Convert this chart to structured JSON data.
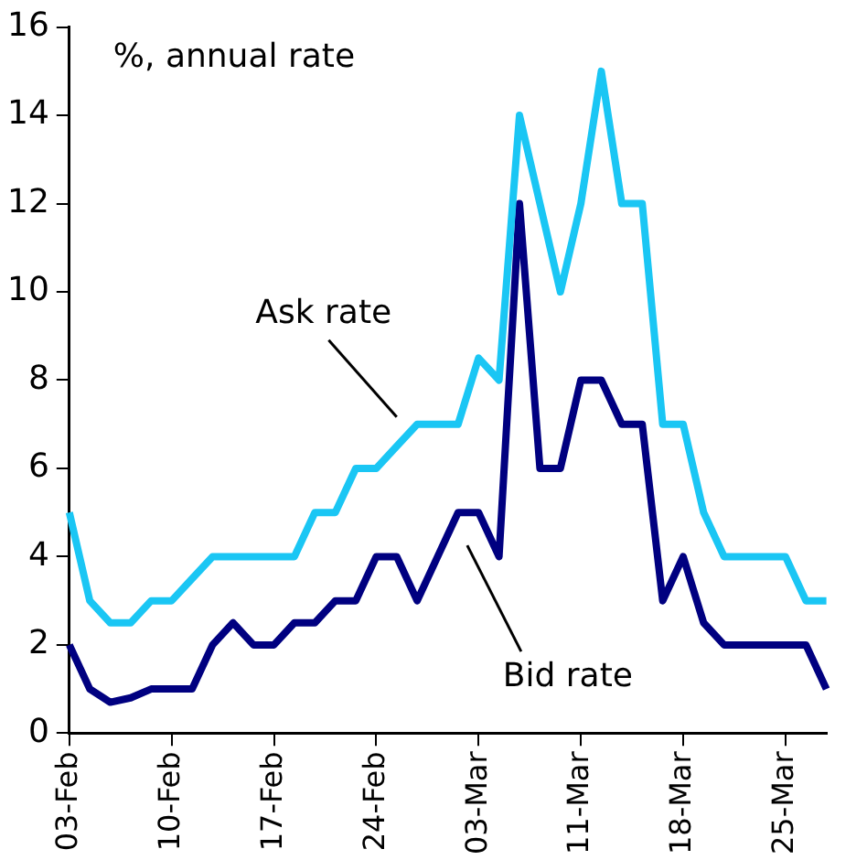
{
  "chart_data": {
    "type": "line",
    "ylabel": "%, annual rate",
    "categories": [
      "03-Feb",
      null,
      null,
      null,
      null,
      "10-Feb",
      null,
      null,
      null,
      null,
      "17-Feb",
      null,
      null,
      null,
      null,
      "24-Feb",
      null,
      null,
      null,
      null,
      "03-Mar",
      null,
      null,
      null,
      null,
      "11-Mar",
      null,
      null,
      null,
      null,
      "18-Mar",
      null,
      null,
      null,
      null,
      "25-Mar",
      null,
      null
    ],
    "series": [
      {
        "name": "Ask rate",
        "color": "#1ac6f4",
        "values": [
          5,
          3,
          2.5,
          2.5,
          3,
          3,
          3.5,
          4,
          4,
          4,
          4,
          4,
          5,
          5,
          6,
          6,
          6.5,
          7,
          7,
          7,
          8.5,
          8,
          14,
          12,
          10,
          12,
          15,
          12,
          12,
          7,
          7,
          5,
          4,
          4,
          4,
          4,
          3,
          3
        ]
      },
      {
        "name": "Bid rate",
        "color": "#000080",
        "values": [
          2,
          1,
          0.7,
          0.8,
          1,
          1,
          1,
          2,
          2.5,
          2,
          2,
          2.5,
          2.5,
          3,
          3,
          4,
          4,
          3,
          4,
          5,
          5,
          4,
          12,
          6,
          6,
          8,
          8,
          7,
          7,
          3,
          4,
          2.5,
          2,
          2,
          2,
          2,
          2,
          1
        ]
      }
    ],
    "ylim": [
      0,
      16
    ],
    "yticks": [
      0,
      2,
      4,
      6,
      8,
      10,
      12,
      14,
      16
    ],
    "grid": false,
    "legend": false,
    "line_style": "solid",
    "marker": "none"
  }
}
